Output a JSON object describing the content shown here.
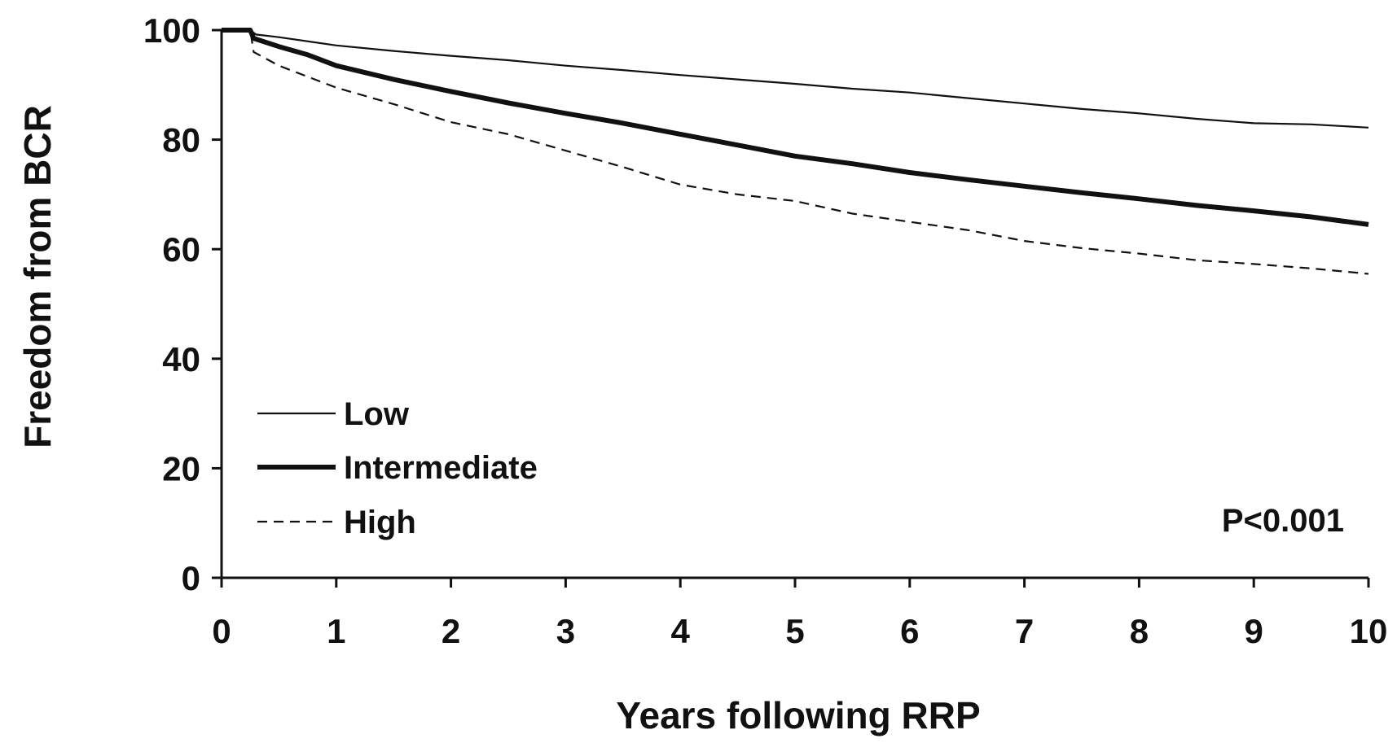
{
  "chart_data": {
    "type": "line",
    "xlabel": "Years following RRP",
    "ylabel": "Freedom from BCR",
    "xlim": [
      0,
      10
    ],
    "ylim": [
      0,
      100
    ],
    "xticks": [
      0,
      1,
      2,
      3,
      4,
      5,
      6,
      7,
      8,
      9,
      10
    ],
    "yticks": [
      0,
      20,
      40,
      60,
      80,
      100
    ],
    "grid": false,
    "legend": "bottom-left",
    "annotation": "P<0.001",
    "series": [
      {
        "name": "Low",
        "style": "thin-solid",
        "points": [
          [
            0,
            100
          ],
          [
            0.25,
            100
          ],
          [
            0.3,
            99.2
          ],
          [
            0.5,
            98.7
          ],
          [
            1,
            97.2
          ],
          [
            1.5,
            96.2
          ],
          [
            2,
            95.3
          ],
          [
            2.5,
            94.5
          ],
          [
            3,
            93.5
          ],
          [
            3.5,
            92.7
          ],
          [
            4,
            91.8
          ],
          [
            4.5,
            91.0
          ],
          [
            5,
            90.2
          ],
          [
            5.5,
            89.3
          ],
          [
            6,
            88.6
          ],
          [
            6.5,
            87.6
          ],
          [
            7,
            86.6
          ],
          [
            7.5,
            85.6
          ],
          [
            8,
            84.8
          ],
          [
            8.5,
            83.8
          ],
          [
            9,
            83.0
          ],
          [
            9.5,
            82.8
          ],
          [
            10,
            82.2
          ]
        ]
      },
      {
        "name": "Intermediate",
        "style": "thick-solid",
        "points": [
          [
            0,
            100
          ],
          [
            0.25,
            100
          ],
          [
            0.28,
            98.5
          ],
          [
            0.5,
            97.0
          ],
          [
            0.75,
            95.5
          ],
          [
            1,
            93.5
          ],
          [
            1.5,
            91.0
          ],
          [
            2,
            88.8
          ],
          [
            2.5,
            86.7
          ],
          [
            3,
            84.8
          ],
          [
            3.5,
            83.0
          ],
          [
            4,
            81.0
          ],
          [
            4.5,
            79.0
          ],
          [
            5,
            77.0
          ],
          [
            5.5,
            75.6
          ],
          [
            6,
            74.0
          ],
          [
            6.5,
            72.7
          ],
          [
            7,
            71.5
          ],
          [
            7.5,
            70.3
          ],
          [
            8,
            69.2
          ],
          [
            8.5,
            68.0
          ],
          [
            9,
            67.0
          ],
          [
            9.5,
            65.9
          ],
          [
            10,
            64.5
          ]
        ]
      },
      {
        "name": "High",
        "style": "dashed",
        "points": [
          [
            0,
            100
          ],
          [
            0.25,
            100
          ],
          [
            0.28,
            96.0
          ],
          [
            0.5,
            93.5
          ],
          [
            0.75,
            91.5
          ],
          [
            1,
            89.5
          ],
          [
            1.5,
            86.5
          ],
          [
            2,
            83.2
          ],
          [
            2.5,
            81.0
          ],
          [
            3,
            78.0
          ],
          [
            3.5,
            75.0
          ],
          [
            4,
            71.8
          ],
          [
            4.5,
            70.0
          ],
          [
            5,
            68.8
          ],
          [
            5.5,
            66.5
          ],
          [
            6,
            65.0
          ],
          [
            6.5,
            63.5
          ],
          [
            7,
            61.5
          ],
          [
            7.5,
            60.2
          ],
          [
            8,
            59.2
          ],
          [
            8.5,
            58.0
          ],
          [
            9,
            57.3
          ],
          [
            9.5,
            56.5
          ],
          [
            10,
            55.5
          ]
        ]
      }
    ]
  }
}
